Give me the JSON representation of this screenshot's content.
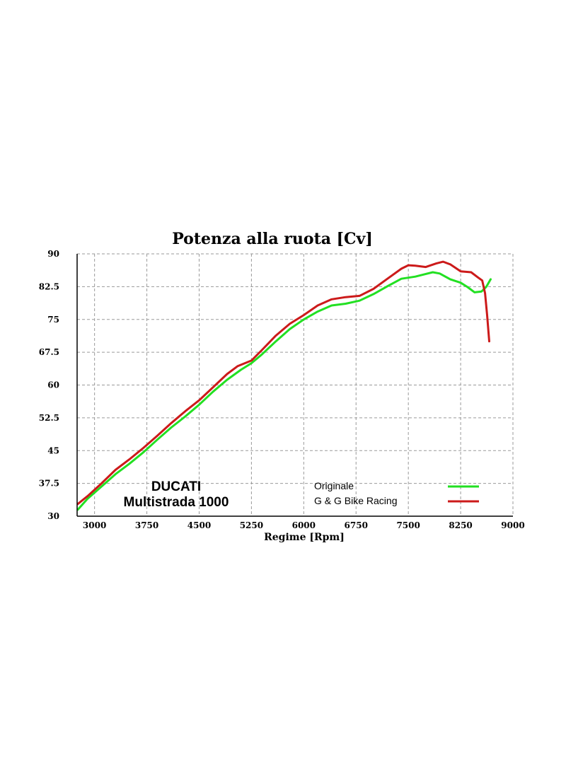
{
  "chart_data": {
    "type": "line",
    "title": "Potenza alla ruota [Cv]",
    "xlabel": "Regime [Rpm]",
    "ylabel": "",
    "xlim": [
      2750,
      9000
    ],
    "ylim": [
      30,
      90
    ],
    "x_ticks": [
      3000,
      3750,
      4500,
      5250,
      6000,
      6750,
      7500,
      8250,
      9000
    ],
    "y_ticks": [
      30,
      37.5,
      45,
      52.5,
      60,
      67.5,
      75,
      82.5,
      90
    ],
    "x_tick_labels": [
      "3000",
      "3750",
      "4500",
      "5250",
      "6000",
      "6750",
      "7500",
      "8250",
      "9000"
    ],
    "y_tick_labels": [
      "30",
      "37.5",
      "45",
      "52.5",
      "60",
      "67.5",
      "75",
      "82.5",
      "90"
    ],
    "grid": true,
    "legend_position": "bottom-right",
    "annotation": [
      "DUCATI",
      "Multistrada 1000"
    ],
    "series": [
      {
        "name": "Originale",
        "color": "#22e022",
        "points": [
          [
            2760,
            31.5
          ],
          [
            2900,
            34.0
          ],
          [
            3100,
            36.8
          ],
          [
            3300,
            39.6
          ],
          [
            3500,
            42.0
          ],
          [
            3700,
            44.6
          ],
          [
            3900,
            47.5
          ],
          [
            4100,
            50.3
          ],
          [
            4300,
            52.8
          ],
          [
            4500,
            55.5
          ],
          [
            4700,
            58.5
          ],
          [
            4900,
            61.2
          ],
          [
            5100,
            63.5
          ],
          [
            5250,
            65.0
          ],
          [
            5400,
            67.0
          ],
          [
            5600,
            70.0
          ],
          [
            5800,
            72.8
          ],
          [
            6000,
            75.0
          ],
          [
            6200,
            76.8
          ],
          [
            6400,
            78.2
          ],
          [
            6600,
            78.6
          ],
          [
            6800,
            79.3
          ],
          [
            7000,
            80.8
          ],
          [
            7200,
            82.6
          ],
          [
            7400,
            84.3
          ],
          [
            7600,
            84.8
          ],
          [
            7700,
            85.2
          ],
          [
            7850,
            85.8
          ],
          [
            7950,
            85.5
          ],
          [
            8100,
            84.2
          ],
          [
            8250,
            83.4
          ],
          [
            8350,
            82.4
          ],
          [
            8450,
            81.2
          ],
          [
            8550,
            81.4
          ],
          [
            8620,
            82.5
          ],
          [
            8680,
            84.2
          ]
        ]
      },
      {
        "name": "G & G Bike Racing",
        "color": "#cc1a1a",
        "points": [
          [
            2760,
            32.8
          ],
          [
            2900,
            34.6
          ],
          [
            3100,
            37.5
          ],
          [
            3300,
            40.6
          ],
          [
            3500,
            43.0
          ],
          [
            3700,
            45.6
          ],
          [
            3900,
            48.4
          ],
          [
            4100,
            51.3
          ],
          [
            4300,
            54.0
          ],
          [
            4500,
            56.5
          ],
          [
            4700,
            59.5
          ],
          [
            4900,
            62.5
          ],
          [
            5050,
            64.3
          ],
          [
            5250,
            65.6
          ],
          [
            5400,
            68.0
          ],
          [
            5600,
            71.3
          ],
          [
            5800,
            74.0
          ],
          [
            6000,
            76.0
          ],
          [
            6200,
            78.2
          ],
          [
            6400,
            79.6
          ],
          [
            6600,
            80.1
          ],
          [
            6800,
            80.4
          ],
          [
            7000,
            82.0
          ],
          [
            7200,
            84.3
          ],
          [
            7400,
            86.6
          ],
          [
            7500,
            87.4
          ],
          [
            7600,
            87.3
          ],
          [
            7750,
            87.0
          ],
          [
            7900,
            87.8
          ],
          [
            8000,
            88.2
          ],
          [
            8100,
            87.6
          ],
          [
            8250,
            86.0
          ],
          [
            8400,
            85.8
          ],
          [
            8500,
            84.6
          ],
          [
            8560,
            83.9
          ],
          [
            8600,
            81.0
          ],
          [
            8630,
            76.0
          ],
          [
            8660,
            70.0
          ]
        ]
      }
    ]
  }
}
